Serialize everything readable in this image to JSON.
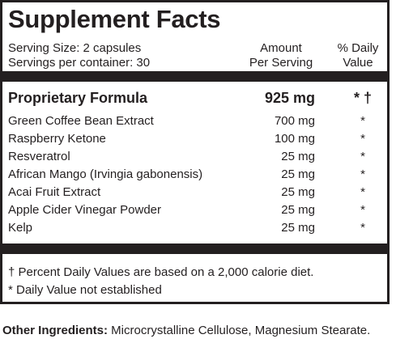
{
  "title": "Supplement Facts",
  "serving_size": "Serving Size: 2 capsules",
  "servings_per_container": "Servings per container: 30",
  "amount_header_line1": "Amount",
  "amount_header_line2": "Per Serving",
  "dv_header_line1": "% Daily",
  "dv_header_line2": "Value",
  "proprietary": {
    "name": "Proprietary Formula",
    "amount": "925 mg",
    "dv": "* †"
  },
  "ingredients": [
    {
      "name": "Green Coffee Bean Extract",
      "amount": "700 mg",
      "dv": "*"
    },
    {
      "name": "Raspberry Ketone",
      "amount": "100 mg",
      "dv": "*"
    },
    {
      "name": "Resveratrol",
      "amount": "25 mg",
      "dv": "*"
    },
    {
      "name": "African Mango (Irvingia gabonensis)",
      "amount": "25 mg",
      "dv": "*"
    },
    {
      "name": "Acai Fruit Extract",
      "amount": "25 mg",
      "dv": "*"
    },
    {
      "name": "Apple Cider Vinegar Powder",
      "amount": "25 mg",
      "dv": "*"
    },
    {
      "name": "Kelp",
      "amount": "25 mg",
      "dv": "*"
    }
  ],
  "footnote_1": "† Percent Daily Values are based on a 2,000 calorie diet.",
  "footnote_2": "* Daily Value not established",
  "other_ingredients_label": "Other Ingredients:",
  "other_ingredients_text": " Microcrystalline Cellulose, Magnesium Stearate."
}
